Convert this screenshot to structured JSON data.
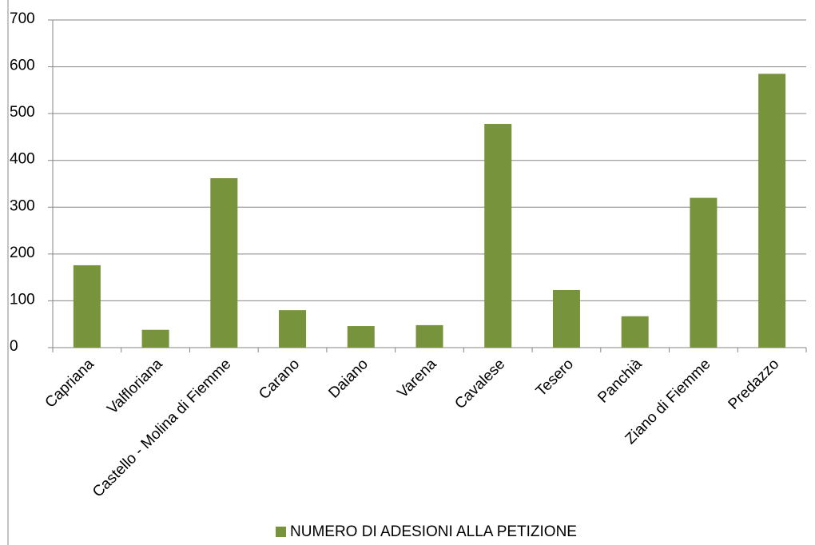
{
  "chart_data": {
    "type": "bar",
    "categories": [
      "Capriana",
      "Valfloriana",
      "Castello - Molina di Fiemme",
      "Carano",
      "Daiano",
      "Varena",
      "Cavalese",
      "Tesero",
      "Panchià",
      "Ziano di Fiemme",
      "Predazzo"
    ],
    "series": [
      {
        "name": "NUMERO DI ADESIONI ALLA PETIZIONE",
        "color": "#77933c",
        "values": [
          176,
          38,
          362,
          80,
          46,
          48,
          478,
          123,
          67,
          320,
          585
        ]
      }
    ],
    "ylim": [
      0,
      700
    ],
    "yticks": [
      0,
      100,
      200,
      300,
      400,
      500,
      600,
      700
    ],
    "grid": true,
    "legend": "bottom"
  }
}
